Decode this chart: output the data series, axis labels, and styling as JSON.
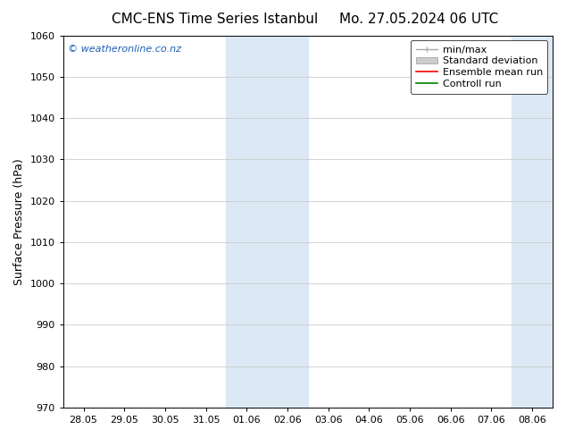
{
  "title_left": "CMC-ENS Time Series Istanbul",
  "title_right": "Mo. 27.05.2024 06 UTC",
  "ylabel": "Surface Pressure (hPa)",
  "ylim": [
    970,
    1060
  ],
  "yticks": [
    970,
    980,
    990,
    1000,
    1010,
    1020,
    1030,
    1040,
    1050,
    1060
  ],
  "xtick_labels": [
    "28.05",
    "29.05",
    "30.05",
    "31.05",
    "01.06",
    "02.06",
    "03.06",
    "04.06",
    "05.06",
    "06.06",
    "07.06",
    "08.06"
  ],
  "shaded_color": "#dce9f5",
  "watermark_text": "© weatheronline.co.nz",
  "watermark_color": "#1a5eb8",
  "bg_color": "#ffffff",
  "grid_color": "#cccccc",
  "title_fontsize": 11,
  "axis_label_fontsize": 9,
  "tick_fontsize": 8,
  "legend_fontsize": 8
}
